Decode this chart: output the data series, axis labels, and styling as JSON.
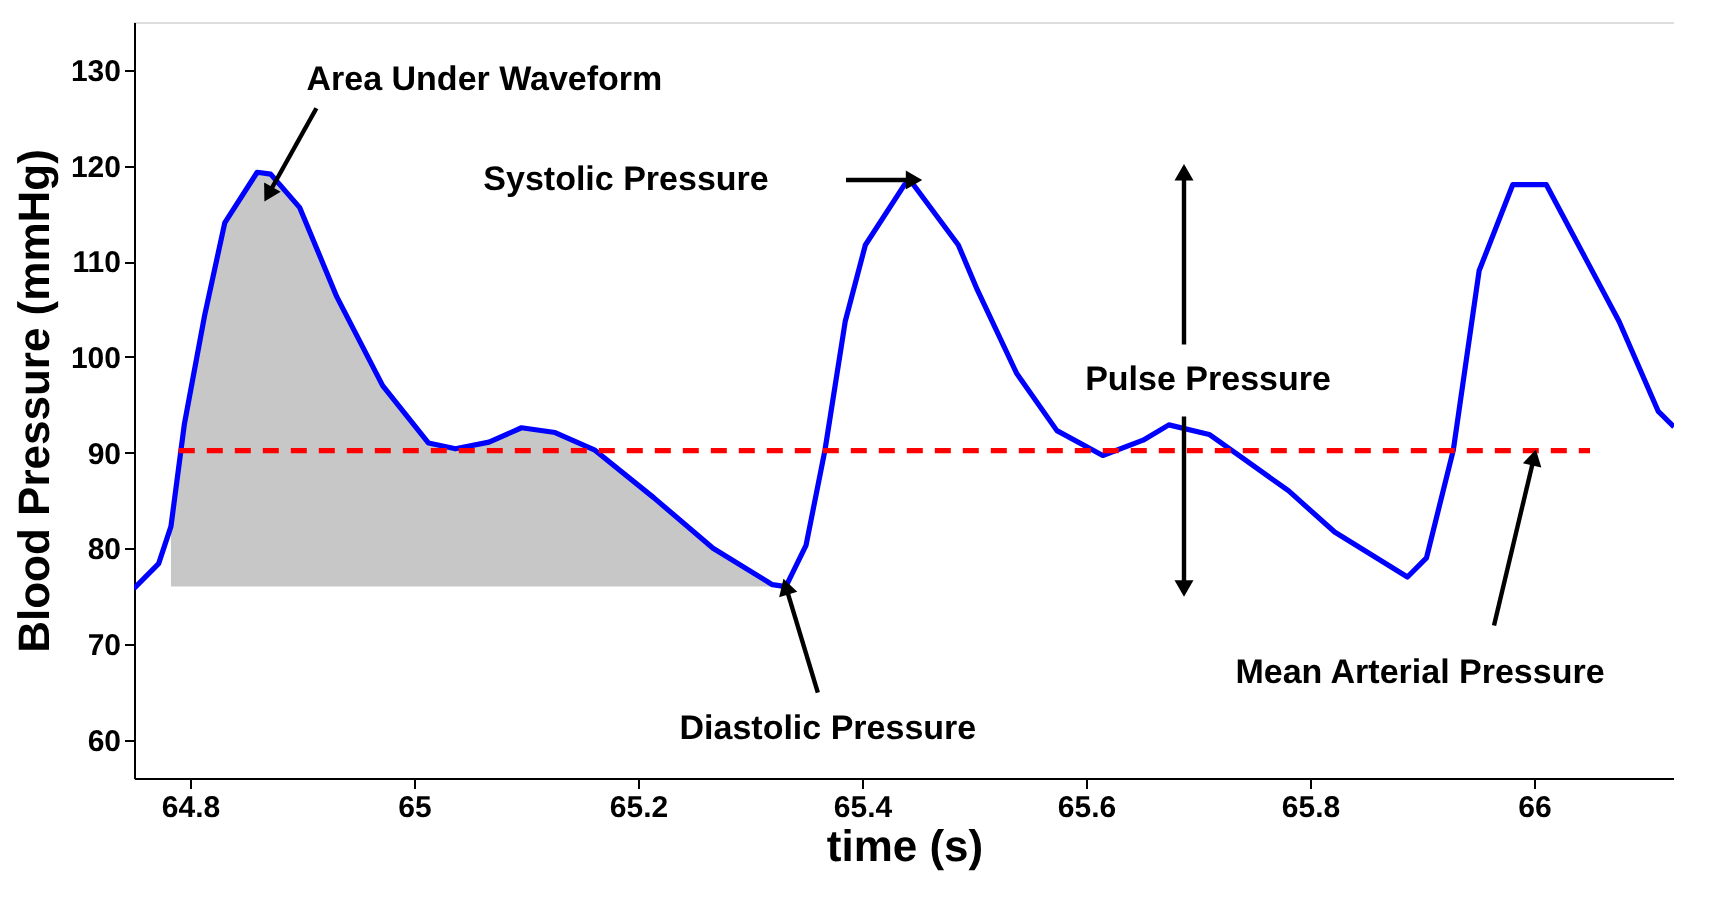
{
  "chart_data": {
    "type": "line",
    "xlabel": "time (s)",
    "ylabel": "Blood Pressure (mmHg)",
    "xlim": [
      64.75,
      66.125
    ],
    "ylim": [
      56,
      135
    ],
    "xticks": [
      64.8,
      65,
      65.2,
      65.4,
      65.6,
      65.8,
      66
    ],
    "yticks": [
      60,
      70,
      80,
      90,
      100,
      110,
      120,
      130
    ],
    "grid": false,
    "series": [
      {
        "type": "area",
        "color": "#000000",
        "x": [
          64.783,
          64.795,
          64.813,
          64.831,
          64.86,
          64.872,
          64.898,
          64.931,
          64.972,
          65.013,
          65.037,
          65.067,
          65.096,
          65.126,
          65.161,
          65.214,
          65.267,
          65.32,
          65.332
        ],
        "values": [
          82.3,
          93,
          104.3,
          114,
          119.3,
          119.1,
          115.6,
          106.3,
          97,
          91,
          90.4,
          91.1,
          92.6,
          92.1,
          90.3,
          85.3,
          80,
          76.2,
          76
        ]
      },
      {
        "color": "#0000ff",
        "line_style": "solid",
        "x": [
          64.75,
          64.772,
          64.783,
          64.795,
          64.813,
          64.831,
          64.86,
          64.872,
          64.898,
          64.931,
          64.972,
          65.013,
          65.037,
          65.067,
          65.096,
          65.126,
          65.161,
          65.214,
          65.267,
          65.32,
          65.332,
          65.35,
          65.367,
          65.385,
          65.403,
          65.438,
          65.444,
          65.486,
          65.503,
          65.538,
          65.574,
          65.615,
          65.651,
          65.674,
          65.71,
          65.739,
          65.781,
          65.822,
          65.887,
          65.904,
          65.928,
          65.951,
          65.981,
          66.011,
          66.046,
          66.076,
          66.111,
          66.125
        ],
        "values": [
          75.8,
          78.4,
          82.3,
          93,
          104.3,
          114,
          119.3,
          119.1,
          115.6,
          106.3,
          97,
          91,
          90.4,
          91.1,
          92.6,
          92.1,
          90.3,
          85.3,
          80,
          76.2,
          76,
          80.3,
          90.3,
          103.7,
          111.7,
          118,
          118.3,
          111.7,
          107,
          98.3,
          92.3,
          89.7,
          91.3,
          92.9,
          91.9,
          89.5,
          86,
          81.7,
          77,
          79,
          90.3,
          109,
          118,
          118,
          110.3,
          103.7,
          94.3,
          92.7
        ]
      },
      {
        "color": "#ff0000",
        "line_style": "dashed",
        "x": [
          64.79,
          66.05
        ],
        "values": [
          90.2,
          90.2
        ]
      }
    ],
    "annotations": [
      {
        "text": "Area Under Waveform",
        "x": 64.87,
        "y": 117
      },
      "Systolic Pressure",
      {
        "text": "Diastolic Pressure",
        "x": 65.332,
        "y": 76
      },
      {
        "text": "Mean Arterial Pressure",
        "x": 66.0,
        "y": 89.5
      },
      "Pulse Pressure"
    ]
  }
}
